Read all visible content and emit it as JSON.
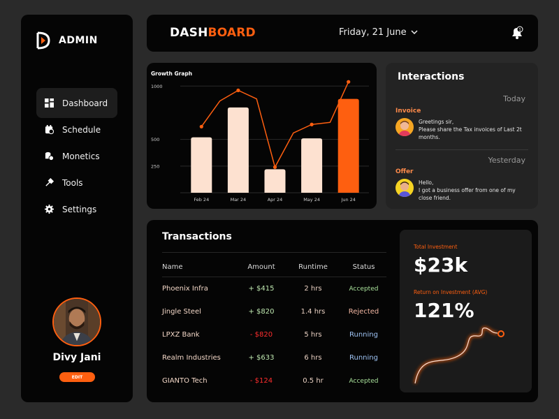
{
  "sidebar": {
    "brand": "ADMIN",
    "items": [
      {
        "label": "Dashboard",
        "icon": "dashboard-icon",
        "active": true
      },
      {
        "label": "Schedule",
        "icon": "calendar-icon"
      },
      {
        "label": "Monetics",
        "icon": "money-icon"
      },
      {
        "label": "Tools",
        "icon": "tools-icon"
      },
      {
        "label": "Settings",
        "icon": "gear-icon"
      }
    ],
    "user_name": "Divy Jani",
    "edit_label": "EDIT"
  },
  "header": {
    "title_part1": "DASH",
    "title_part2": "BOARD",
    "date": "Friday, 21 June",
    "notification_count": "1"
  },
  "chart_data": {
    "type": "bar",
    "title": "Growth Graph",
    "categories": [
      "Feb 24",
      "Mar 24",
      "Apr 24",
      "May 24",
      "Jun 24"
    ],
    "series": [
      {
        "type": "bar",
        "values": [
          520,
          800,
          220,
          510,
          880
        ]
      },
      {
        "type": "line",
        "points": [
          {
            "x": "Feb 24",
            "y": 620
          },
          {
            "x": "Feb 24b",
            "y": 860
          },
          {
            "x": "Mar 24",
            "y": 960
          },
          {
            "x": "Mar 24b",
            "y": 880
          },
          {
            "x": "Apr 24",
            "y": 240
          },
          {
            "x": "Apr 24b",
            "y": 560
          },
          {
            "x": "May 24",
            "y": 640
          },
          {
            "x": "May 24b",
            "y": 660
          },
          {
            "x": "Jun 24",
            "y": 1040
          }
        ]
      }
    ],
    "yticks": [
      1000,
      500,
      250
    ],
    "ylim": [
      0,
      1100
    ],
    "colors": {
      "bar": "#fde1d0",
      "highlight": "#fe5f10",
      "line": "#fe5f10"
    }
  },
  "interactions": {
    "title": "Interactions",
    "groups": [
      {
        "day": "Today",
        "type": "Invoice",
        "lines": [
          "Greetings sir,",
          "Please share the Tax invoices of Last 2t",
          "months."
        ]
      },
      {
        "day": "Yesterday",
        "type": "Offer",
        "lines": [
          "Hello,",
          "I got a business offer from one of my",
          "close friend."
        ]
      }
    ]
  },
  "transactions": {
    "title": "Transactions",
    "columns": [
      "Name",
      "Amount",
      "Runtime",
      "Status"
    ],
    "rows": [
      {
        "name": "Phoenix Infra",
        "amount": "+ $415",
        "runtime": "2 hrs",
        "status": "Accepted"
      },
      {
        "name": "Jingle Steel",
        "amount": "+ $820",
        "runtime": "1.4 hrs",
        "status": "Rejected"
      },
      {
        "name": "LPXZ Bank",
        "amount": "- $820",
        "runtime": "5 hrs",
        "status": "Running"
      },
      {
        "name": "Realm Industries",
        "amount": "+ $633",
        "runtime": "6 hrs",
        "status": "Running"
      },
      {
        "name": "GIANTO Tech",
        "amount": "- $124",
        "runtime": "0.5 hr",
        "status": "Accepted"
      }
    ]
  },
  "investment": {
    "total_label": "Total Investment",
    "total_value": "$23k",
    "roi_label": "Return on Investment (AVG)",
    "roi_value": "121%"
  },
  "colors": {
    "accent": "#fe5f10",
    "panel": "#050505",
    "background": "#2a2a2a"
  }
}
